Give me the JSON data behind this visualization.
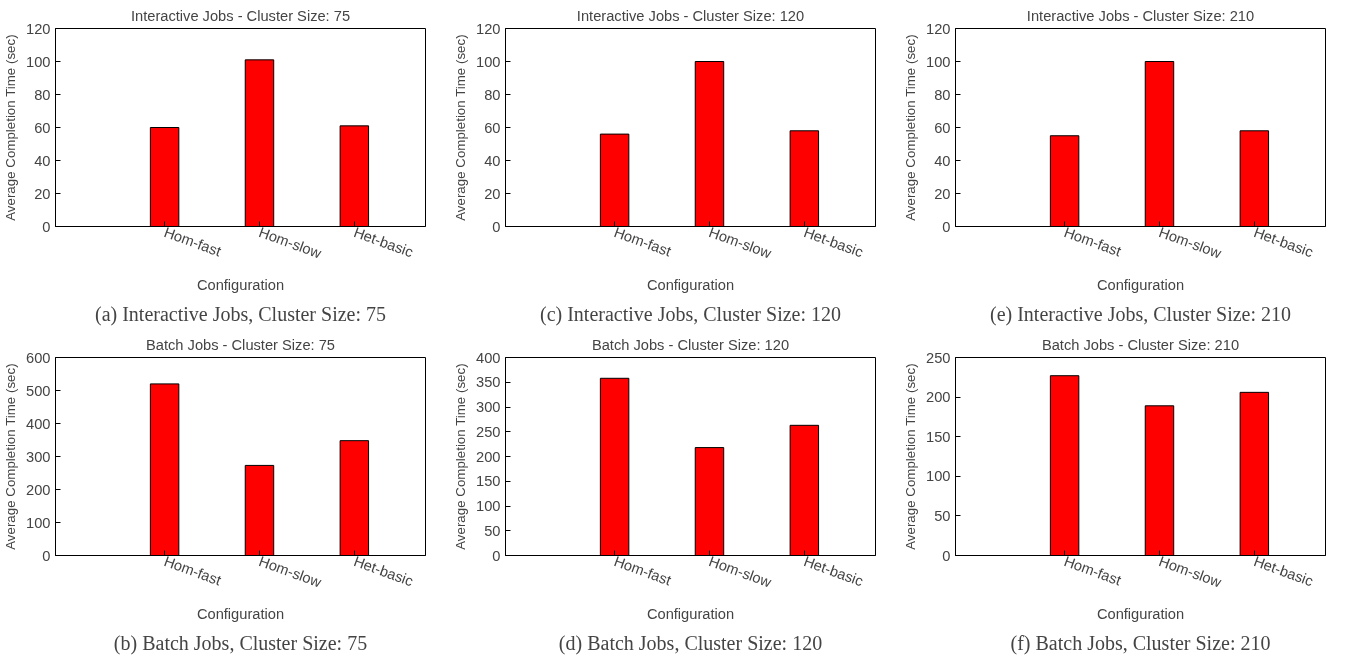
{
  "chart_data": [
    {
      "type": "bar",
      "title": "Interactive Jobs - Cluster Size: 75",
      "xlabel": "Configuration",
      "ylabel": "Average Completion Time (sec)",
      "categories": [
        "Hom-fast",
        "Hom-slow",
        "Het-basic"
      ],
      "values": [
        60,
        101,
        61
      ],
      "color": "#ff0000",
      "ylim": [
        0,
        120
      ],
      "yticks": [
        0,
        20,
        40,
        60,
        80,
        100,
        120
      ],
      "annotations": [
        "(a) Interactive Jobs, Cluster Size: 75"
      ]
    },
    {
      "type": "bar",
      "title": "Interactive Jobs - Cluster Size: 120",
      "xlabel": "Configuration",
      "ylabel": "Average Completion Time (sec)",
      "categories": [
        "Hom-fast",
        "Hom-slow",
        "Het-basic"
      ],
      "values": [
        56,
        100,
        58
      ],
      "color": "#ff0000",
      "ylim": [
        0,
        120
      ],
      "yticks": [
        0,
        20,
        40,
        60,
        80,
        100,
        120
      ],
      "annotations": [
        "(c) Interactive Jobs, Cluster Size: 120"
      ]
    },
    {
      "type": "bar",
      "title": "Interactive Jobs - Cluster Size: 210",
      "xlabel": "Configuration",
      "ylabel": "Average Completion Time (sec)",
      "categories": [
        "Hom-fast",
        "Hom-slow",
        "Het-basic"
      ],
      "values": [
        55,
        100,
        58
      ],
      "color": "#ff0000",
      "ylim": [
        0,
        120
      ],
      "yticks": [
        0,
        20,
        40,
        60,
        80,
        100,
        120
      ],
      "annotations": [
        "(e) Interactive Jobs, Cluster Size: 210"
      ]
    },
    {
      "type": "bar",
      "title": "Batch Jobs - Cluster Size: 75",
      "xlabel": "Configuration",
      "ylabel": "Average Completion Time (sec)",
      "categories": [
        "Hom-fast",
        "Hom-slow",
        "Het-basic"
      ],
      "values": [
        520,
        273,
        348
      ],
      "color": "#ff0000",
      "ylim": [
        0,
        600
      ],
      "yticks": [
        0,
        100,
        200,
        300,
        400,
        500,
        600
      ],
      "annotations": [
        "(b) Batch Jobs, Cluster Size: 75"
      ]
    },
    {
      "type": "bar",
      "title": "Batch Jobs - Cluster Size: 120",
      "xlabel": "Configuration",
      "ylabel": "Average Completion Time (sec)",
      "categories": [
        "Hom-fast",
        "Hom-slow",
        "Het-basic"
      ],
      "values": [
        358,
        218,
        263
      ],
      "color": "#ff0000",
      "ylim": [
        0,
        400
      ],
      "yticks": [
        0,
        50,
        100,
        150,
        200,
        250,
        300,
        350,
        400
      ],
      "annotations": [
        "(d) Batch Jobs, Cluster Size: 120"
      ]
    },
    {
      "type": "bar",
      "title": "Batch Jobs - Cluster Size: 210",
      "xlabel": "Configuration",
      "ylabel": "Average Completion Time (sec)",
      "categories": [
        "Hom-fast",
        "Hom-slow",
        "Het-basic"
      ],
      "values": [
        227,
        189,
        206
      ],
      "color": "#ff0000",
      "ylim": [
        0,
        250
      ],
      "yticks": [
        0,
        50,
        100,
        150,
        200,
        250
      ],
      "annotations": [
        "(f) Batch Jobs, Cluster Size: 210"
      ]
    }
  ]
}
